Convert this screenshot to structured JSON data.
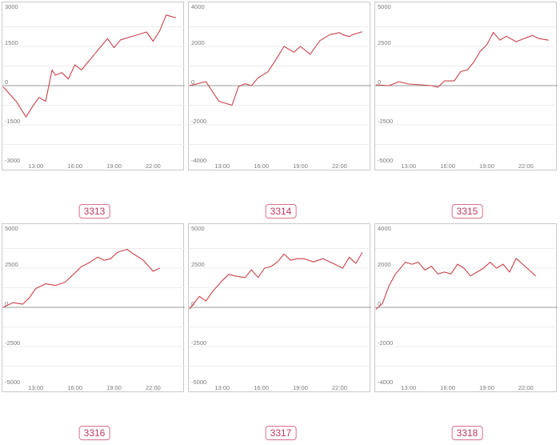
{
  "colors": {
    "line": "#c9424a",
    "zero_line": "#9a9a9a",
    "grid": "#ececec",
    "frame": "#c9c9c9",
    "badge": "#c0385e"
  },
  "chart_data": [
    {
      "type": "line",
      "label": "3313",
      "ylim": [
        -3000,
        3000
      ],
      "yticks": [
        3000,
        1500,
        0,
        -1500,
        -3000
      ],
      "ytick_labels": [
        "3000",
        "1500",
        "0",
        "-1500",
        "-3000"
      ],
      "x_range": [
        10.5,
        24
      ],
      "xticks": [
        13,
        16,
        19,
        22
      ],
      "xtick_labels": [
        "13:00",
        "16:00",
        "19:00",
        "22:00"
      ],
      "x": [
        10.5,
        11.5,
        12.25,
        12.75,
        13.25,
        13.75,
        14.25,
        14.5,
        15.0,
        15.5,
        16.0,
        16.5,
        17.0,
        17.5,
        18.0,
        18.5,
        19.0,
        19.5,
        20.5,
        21.5,
        22.0,
        22.5,
        23.0,
        23.75
      ],
      "y": [
        -50,
        -600,
        -1200,
        -800,
        -450,
        -600,
        600,
        400,
        500,
        250,
        800,
        600,
        900,
        1200,
        1500,
        1800,
        1450,
        1750,
        1900,
        2050,
        1700,
        2100,
        2700,
        2600
      ]
    },
    {
      "type": "line",
      "label": "3314",
      "ylim": [
        -4000,
        4000
      ],
      "yticks": [
        4000,
        2000,
        0,
        -2000,
        -4000
      ],
      "ytick_labels": [
        "4000",
        "2000",
        "0",
        "-2000",
        "-4000"
      ],
      "x_range": [
        10.5,
        24
      ],
      "xticks": [
        13,
        16,
        19,
        22
      ],
      "xtick_labels": [
        "13:00",
        "16:00",
        "19:00",
        "22:00"
      ],
      "x": [
        10.5,
        11.75,
        12.75,
        13.75,
        14.25,
        14.75,
        15.25,
        15.75,
        16.5,
        17.0,
        17.75,
        18.5,
        19.0,
        19.75,
        20.5,
        21.25,
        22.0,
        22.25,
        22.75,
        23.0,
        23.75
      ],
      "y": [
        0,
        200,
        -800,
        -1000,
        -50,
        100,
        0,
        400,
        700,
        1200,
        2000,
        1700,
        2000,
        1600,
        2300,
        2600,
        2700,
        2600,
        2500,
        2600,
        2750
      ]
    },
    {
      "type": "line",
      "label": "3315",
      "ylim": [
        -5000,
        5000
      ],
      "yticks": [
        5000,
        2500,
        0,
        -2500,
        -5000
      ],
      "ytick_labels": [
        "5000",
        "2500",
        "0",
        "-2500",
        "-5000"
      ],
      "x_range": [
        10.5,
        24
      ],
      "xticks": [
        13,
        16,
        19,
        22
      ],
      "xtick_labels": [
        "13:00",
        "16:00",
        "19:00",
        "22:00"
      ],
      "x": [
        10.5,
        11.5,
        12.25,
        13.0,
        14.0,
        14.75,
        15.25,
        15.75,
        16.5,
        17.0,
        17.5,
        18.0,
        18.5,
        19.0,
        19.5,
        20.0,
        20.5,
        21.25,
        22.0,
        22.5,
        23.0,
        23.75
      ],
      "y": [
        50,
        0,
        250,
        100,
        50,
        0,
        -100,
        300,
        300,
        900,
        1000,
        1500,
        2200,
        2600,
        3400,
        2900,
        3150,
        2800,
        3050,
        3200,
        3000,
        2900
      ]
    },
    {
      "type": "line",
      "label": "3316",
      "ylim": [
        -5000,
        5000
      ],
      "yticks": [
        5000,
        2500,
        0,
        -2500,
        -5000
      ],
      "ytick_labels": [
        "5000",
        "2500",
        "0",
        "-2500",
        "-5000"
      ],
      "x_range": [
        10.5,
        24
      ],
      "xticks": [
        13,
        16,
        19,
        22
      ],
      "xtick_labels": [
        "13:00",
        "16:00",
        "19:00",
        "22:00"
      ],
      "x": [
        10.5,
        11.25,
        12.0,
        12.5,
        13.0,
        13.75,
        14.5,
        15.25,
        15.75,
        16.5,
        17.0,
        17.75,
        18.25,
        18.75,
        19.25,
        20.0,
        20.5,
        21.25,
        22.0,
        22.5
      ],
      "y": [
        0,
        300,
        200,
        600,
        1200,
        1500,
        1400,
        1600,
        2000,
        2600,
        2800,
        3200,
        3000,
        3100,
        3500,
        3700,
        3400,
        3000,
        2300,
        2500
      ]
    },
    {
      "type": "line",
      "label": "3317",
      "ylim": [
        -5000,
        5000
      ],
      "yticks": [
        5000,
        2500,
        0,
        -2500,
        -5000
      ],
      "ytick_labels": [
        "5000",
        "2500",
        "0",
        "-2500",
        "-5000"
      ],
      "x_range": [
        10.5,
        24
      ],
      "xticks": [
        13,
        16,
        19,
        22
      ],
      "xtick_labels": [
        "13:00",
        "16:00",
        "19:00",
        "22:00"
      ],
      "x": [
        10.5,
        11.25,
        11.75,
        12.25,
        13.0,
        13.5,
        14.0,
        14.75,
        15.25,
        15.75,
        16.25,
        16.75,
        17.25,
        17.75,
        18.25,
        18.75,
        19.25,
        20.0,
        20.75,
        21.5,
        22.25,
        22.75,
        23.25,
        23.75
      ],
      "y": [
        -100,
        700,
        400,
        1000,
        1700,
        2100,
        2000,
        1900,
        2400,
        1900,
        2500,
        2600,
        2900,
        3400,
        3000,
        3100,
        3100,
        2900,
        3100,
        2800,
        2500,
        3200,
        2800,
        3500
      ]
    },
    {
      "type": "line",
      "label": "3318",
      "ylim": [
        -4000,
        4000
      ],
      "yticks": [
        4000,
        2000,
        0,
        -2000,
        -4000
      ],
      "ytick_labels": [
        "4000",
        "2000",
        "0",
        "-2000",
        "-4000"
      ],
      "x_range": [
        10.5,
        24
      ],
      "xticks": [
        13,
        16,
        19,
        22
      ],
      "xtick_labels": [
        "13:00",
        "16:00",
        "19:00",
        "22:00"
      ],
      "x": [
        10.5,
        11.0,
        11.5,
        12.0,
        12.75,
        13.25,
        13.75,
        14.25,
        14.75,
        15.25,
        15.75,
        16.25,
        16.75,
        17.25,
        17.75,
        18.25,
        18.75,
        19.25,
        19.75,
        20.25,
        20.75,
        21.25,
        21.75,
        22.25,
        22.75
      ],
      "y": [
        -100,
        200,
        1100,
        1700,
        2300,
        2200,
        2300,
        1900,
        2100,
        1700,
        1800,
        1700,
        2200,
        2000,
        1600,
        1800,
        2000,
        2300,
        2000,
        2200,
        1800,
        2500,
        2200,
        1900,
        1600
      ]
    }
  ]
}
